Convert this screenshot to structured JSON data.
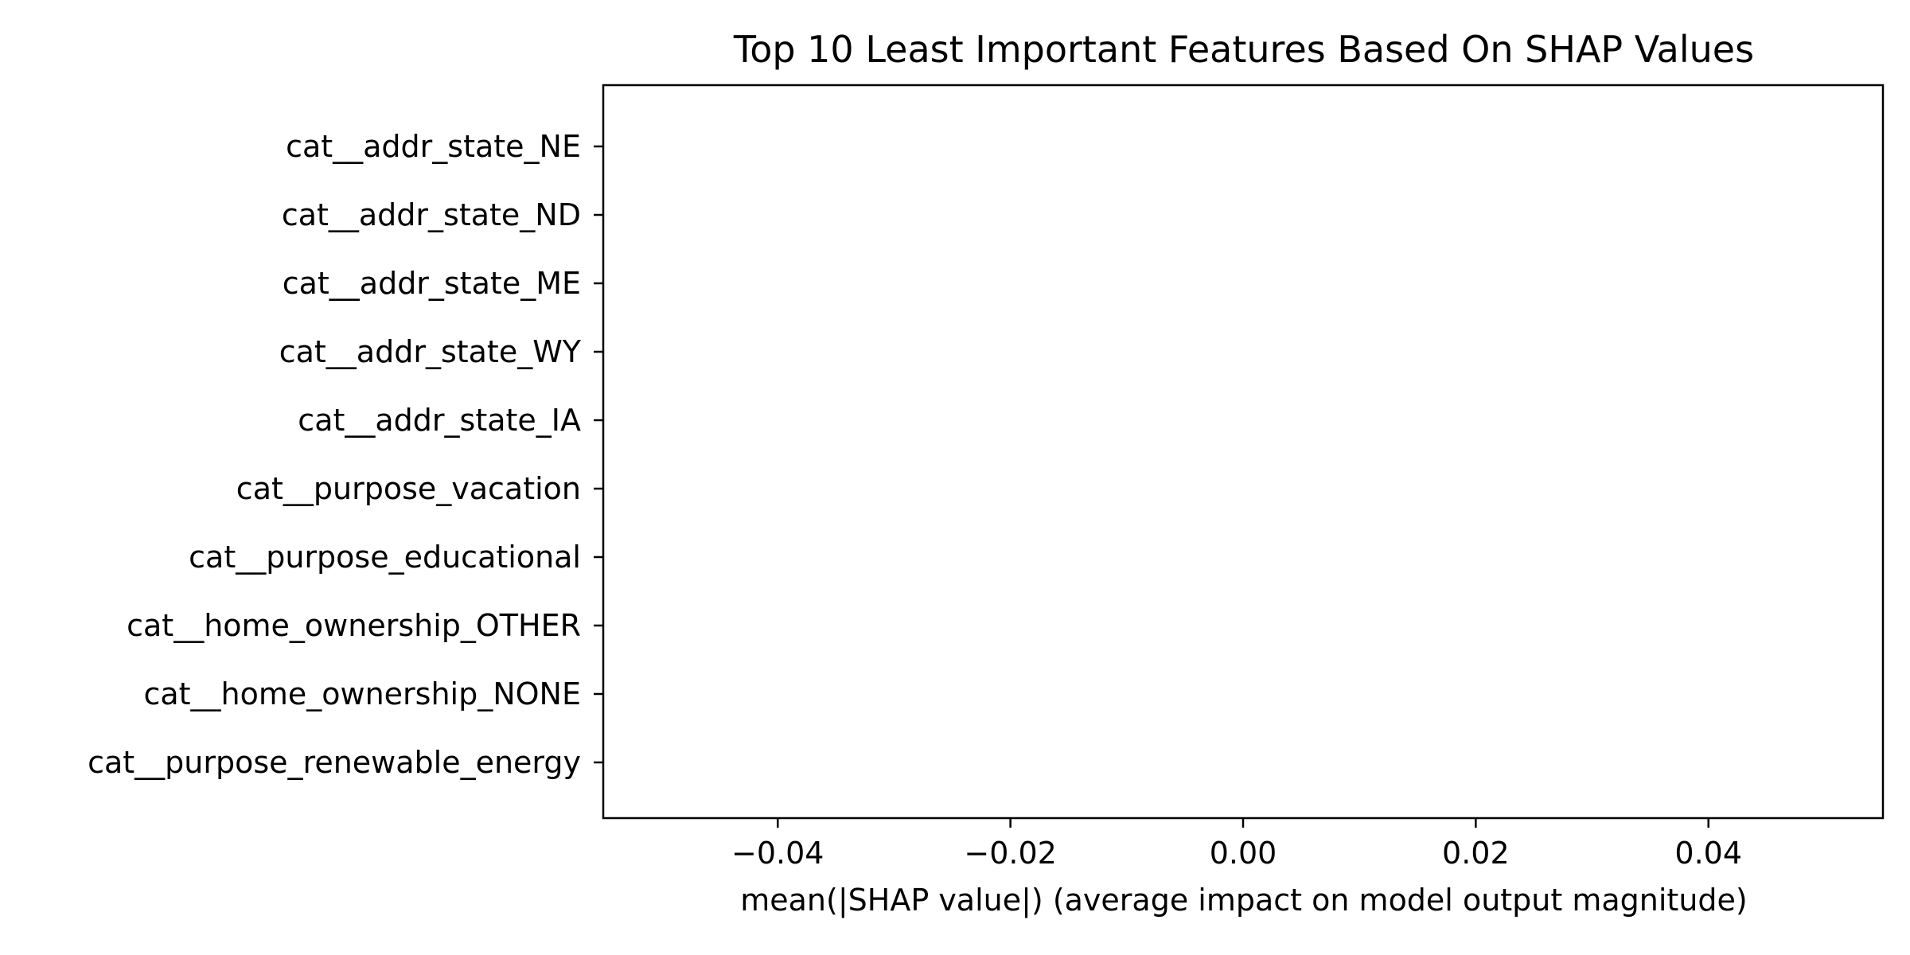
{
  "chart_data": {
    "type": "bar",
    "orientation": "horizontal",
    "title": "Top 10 Least Important Features Based On SHAP Values",
    "xlabel": "mean(|SHAP value|) (average impact on model output magnitude)",
    "ylabel": "",
    "categories": [
      "cat__addr_state_NE",
      "cat__addr_state_ND",
      "cat__addr_state_ME",
      "cat__addr_state_WY",
      "cat__addr_state_IA",
      "cat__purpose_vacation",
      "cat__purpose_educational",
      "cat__home_ownership_OTHER",
      "cat__home_ownership_NONE",
      "cat__purpose_renewable_energy"
    ],
    "values": [
      0,
      0,
      0,
      0,
      0,
      0,
      0,
      0,
      0,
      0
    ],
    "xlim": [
      -0.055,
      0.055
    ],
    "xticks": [
      -0.04,
      -0.02,
      0.0,
      0.02,
      0.04
    ],
    "xtick_labels": [
      "−0.04",
      "−0.02",
      "0.00",
      "0.02",
      "0.04"
    ],
    "grid": false,
    "bar_color": "#1f77b4"
  }
}
